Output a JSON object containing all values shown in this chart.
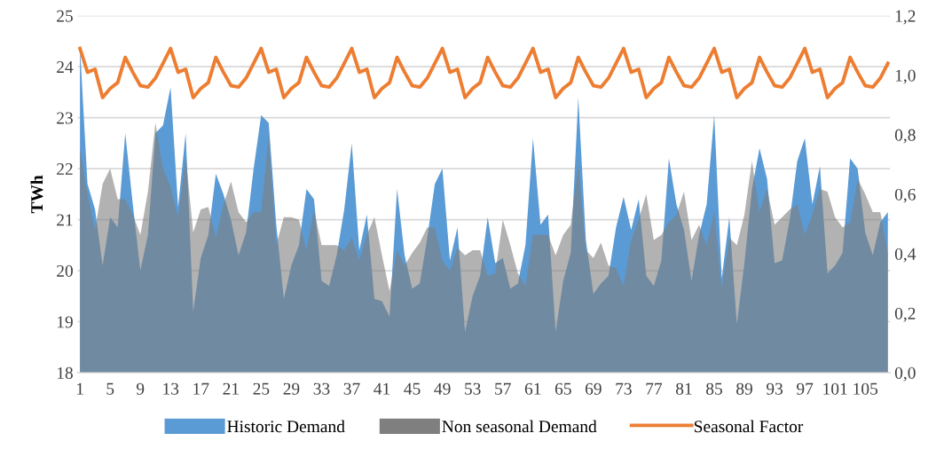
{
  "chart_data": {
    "type": "area",
    "ylabel": "TWh",
    "categories": [
      "1",
      null,
      null,
      null,
      "5",
      null,
      null,
      null,
      "9",
      null,
      null,
      null,
      "13",
      null,
      null,
      null,
      "17",
      null,
      null,
      null,
      "21",
      null,
      null,
      null,
      "25",
      null,
      null,
      null,
      "29",
      null,
      null,
      null,
      "33",
      null,
      null,
      null,
      "37",
      null,
      null,
      null,
      "41",
      null,
      null,
      null,
      "45",
      null,
      null,
      null,
      "49",
      null,
      null,
      null,
      "53",
      null,
      null,
      null,
      "57",
      null,
      null,
      null,
      "61",
      null,
      null,
      null,
      "65",
      null,
      null,
      null,
      "69",
      null,
      null,
      null,
      "73",
      null,
      null,
      null,
      "77",
      null,
      null,
      null,
      "81",
      null,
      null,
      null,
      "85",
      null,
      null,
      null,
      "89",
      null,
      null,
      null,
      "93",
      null,
      null,
      null,
      "97",
      null,
      null,
      null,
      "101",
      null,
      null,
      null,
      "105",
      null,
      null,
      null
    ],
    "series": [
      {
        "name": "Historic Demand",
        "color": "#5b9bd5",
        "values": [
          24.4,
          21.7,
          21.2,
          20.1,
          21.05,
          20.85,
          22.7,
          21.3,
          20.0,
          20.7,
          22.7,
          22.85,
          23.6,
          21.25,
          22.7,
          19.2,
          20.25,
          20.7,
          21.9,
          21.5,
          21.0,
          20.3,
          20.75,
          22.0,
          23.05,
          22.9,
          20.9,
          19.45,
          20.1,
          20.5,
          21.6,
          21.4,
          19.8,
          19.7,
          20.3,
          21.2,
          22.5,
          20.4,
          21.1,
          19.45,
          19.4,
          19.1,
          21.6,
          20.3,
          19.65,
          19.75,
          20.65,
          21.7,
          22.0,
          20.2,
          20.85,
          18.8,
          19.5,
          19.9,
          21.05,
          20.15,
          20.25,
          19.65,
          19.75,
          20.5,
          22.6,
          20.9,
          21.1,
          18.8,
          19.8,
          20.35,
          23.4,
          20.6,
          19.55,
          19.75,
          19.9,
          20.85,
          21.45,
          20.8,
          21.4,
          19.9,
          19.7,
          20.2,
          22.2,
          21.3,
          20.8,
          19.8,
          20.7,
          21.3,
          23.05,
          19.85,
          21.05,
          18.95,
          20.15,
          21.6,
          22.4,
          21.8,
          20.15,
          20.2,
          21.0,
          22.15,
          22.6,
          21.3,
          22.05,
          19.95,
          20.1,
          20.35,
          22.2,
          22.0,
          20.75,
          20.3,
          20.95,
          21.15
        ]
      },
      {
        "name": "Non seasonal Demand",
        "color": "#7f7f7f",
        "values": [
          22.4,
          21.5,
          20.8,
          21.7,
          22.0,
          21.4,
          21.4,
          21.1,
          20.7,
          21.55,
          22.9,
          22.0,
          21.65,
          21.05,
          22.25,
          20.75,
          21.2,
          21.25,
          20.65,
          21.3,
          21.75,
          21.15,
          20.95,
          21.15,
          21.15,
          22.65,
          20.5,
          21.05,
          21.05,
          21.0,
          20.4,
          21.2,
          20.5,
          20.5,
          20.5,
          20.4,
          20.65,
          20.2,
          20.7,
          21.05,
          20.3,
          19.6,
          20.4,
          20.1,
          20.35,
          20.55,
          20.85,
          20.85,
          20.2,
          20.0,
          20.45,
          20.3,
          20.4,
          20.4,
          19.9,
          19.95,
          21.0,
          20.5,
          19.95,
          19.7,
          20.7,
          20.7,
          20.7,
          20.3,
          20.7,
          20.9,
          22.1,
          20.4,
          20.25,
          20.55,
          20.1,
          20.05,
          19.7,
          20.6,
          21.0,
          21.5,
          20.6,
          20.7,
          20.95,
          21.1,
          21.55,
          20.6,
          20.9,
          20.5,
          21.15,
          19.65,
          20.65,
          20.5,
          21.1,
          22.15,
          21.15,
          21.6,
          20.9,
          21.05,
          21.2,
          21.3,
          20.7,
          21.1,
          21.6,
          21.55,
          21.05,
          20.85,
          20.95,
          21.8,
          21.5,
          21.15,
          21.15,
          20.35
        ]
      },
      {
        "name": "Seasonal Factor",
        "type": "line",
        "axis": "y2",
        "color": "#ed7d31",
        "values": [
          1.09,
          1.01,
          1.02,
          0.925,
          0.955,
          0.975,
          1.06,
          1.01,
          0.965,
          0.96,
          0.99,
          1.04,
          1.09,
          1.01,
          1.02,
          0.925,
          0.955,
          0.975,
          1.06,
          1.01,
          0.965,
          0.96,
          0.99,
          1.04,
          1.09,
          1.01,
          1.02,
          0.925,
          0.955,
          0.975,
          1.06,
          1.01,
          0.965,
          0.96,
          0.99,
          1.04,
          1.09,
          1.01,
          1.02,
          0.925,
          0.955,
          0.975,
          1.06,
          1.01,
          0.965,
          0.96,
          0.99,
          1.04,
          1.09,
          1.01,
          1.02,
          0.925,
          0.955,
          0.975,
          1.06,
          1.01,
          0.965,
          0.96,
          0.99,
          1.04,
          1.09,
          1.01,
          1.02,
          0.925,
          0.955,
          0.975,
          1.06,
          1.01,
          0.965,
          0.96,
          0.99,
          1.04,
          1.09,
          1.01,
          1.02,
          0.925,
          0.955,
          0.975,
          1.06,
          1.01,
          0.965,
          0.96,
          0.99,
          1.04,
          1.09,
          1.01,
          1.02,
          0.925,
          0.955,
          0.975,
          1.06,
          1.01,
          0.965,
          0.96,
          0.99,
          1.04,
          1.09,
          1.01,
          1.02,
          0.925,
          0.955,
          0.975,
          1.06,
          1.01,
          0.965,
          0.96,
          0.99,
          1.04
        ]
      }
    ],
    "ylim": [
      18,
      25
    ],
    "yticks": [
      18,
      19,
      20,
      21,
      22,
      23,
      24,
      25
    ],
    "y2lim": [
      0,
      1.2
    ],
    "y2ticks": [
      {
        "value": 0,
        "label": "0,0"
      },
      {
        "value": 0.2,
        "label": "0,2"
      },
      {
        "value": 0.4,
        "label": "0,4"
      },
      {
        "value": 0.6,
        "label": "0,6"
      },
      {
        "value": 0.8,
        "label": "0,8"
      },
      {
        "value": 1.0,
        "label": "1,0"
      },
      {
        "value": 1.2,
        "label": "1,2"
      }
    ],
    "grid": "y",
    "legend": "bottom",
    "marker": "none",
    "line_style": "solid"
  }
}
